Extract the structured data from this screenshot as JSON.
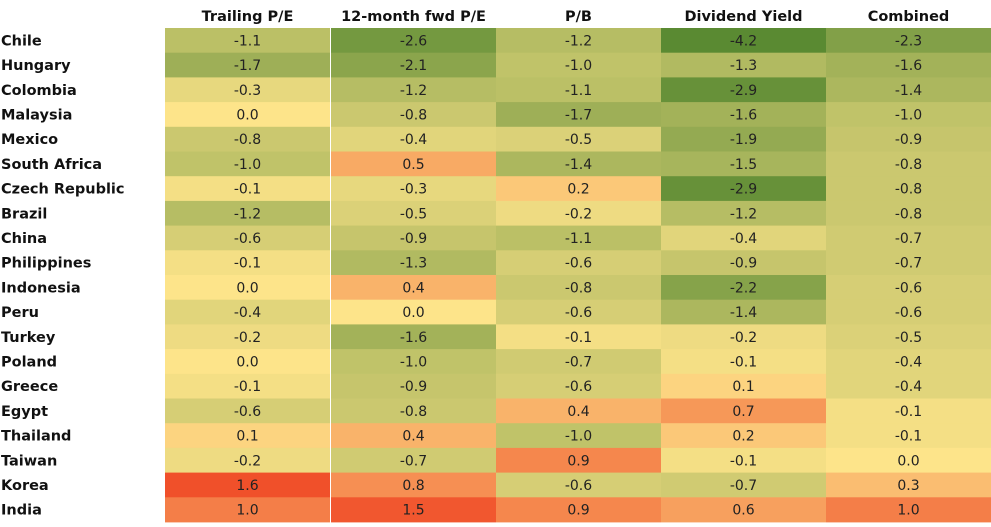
{
  "chart_data": {
    "type": "heatmap",
    "columns": [
      "Trailing P/E",
      "12-month fwd P/E",
      "P/B",
      "Dividend Yield",
      "Combined"
    ],
    "rows": [
      "Chile",
      "Hungary",
      "Colombia",
      "Malaysia",
      "Mexico",
      "South Africa",
      "Czech Republic",
      "Brazil",
      "China",
      "Philippines",
      "Indonesia",
      "Peru",
      "Turkey",
      "Poland",
      "Greece",
      "Egypt",
      "Thailand",
      "Taiwan",
      "Korea",
      "India"
    ],
    "values": [
      [
        -1.1,
        -2.6,
        -1.2,
        -4.2,
        -2.3
      ],
      [
        -1.7,
        -2.1,
        -1.0,
        -1.3,
        -1.6
      ],
      [
        -0.3,
        -1.2,
        -1.1,
        -2.9,
        -1.4
      ],
      [
        0.0,
        -0.8,
        -1.7,
        -1.6,
        -1.0
      ],
      [
        -0.8,
        -0.4,
        -0.5,
        -1.9,
        -0.9
      ],
      [
        -1.0,
        0.5,
        -1.4,
        -1.5,
        -0.8
      ],
      [
        -0.1,
        -0.3,
        0.2,
        -2.9,
        -0.8
      ],
      [
        -1.2,
        -0.5,
        -0.2,
        -1.2,
        -0.8
      ],
      [
        -0.6,
        -0.9,
        -1.1,
        -0.4,
        -0.7
      ],
      [
        -0.1,
        -1.3,
        -0.6,
        -0.9,
        -0.7
      ],
      [
        0.0,
        0.4,
        -0.8,
        -2.2,
        -0.6
      ],
      [
        -0.4,
        0.0,
        -0.6,
        -1.4,
        -0.6
      ],
      [
        -0.2,
        -1.6,
        -0.1,
        -0.2,
        -0.5
      ],
      [
        0.0,
        -1.0,
        -0.7,
        -0.1,
        -0.4
      ],
      [
        -0.1,
        -0.9,
        -0.6,
        0.1,
        -0.4
      ],
      [
        -0.6,
        -0.8,
        0.4,
        0.7,
        -0.1
      ],
      [
        0.1,
        0.4,
        -1.0,
        0.2,
        -0.1
      ],
      [
        -0.2,
        -0.7,
        0.9,
        -0.1,
        0.0
      ],
      [
        1.6,
        0.8,
        -0.6,
        -0.7,
        0.3
      ],
      [
        1.0,
        1.5,
        0.9,
        0.6,
        1.0
      ]
    ],
    "color_scale": {
      "low": "#5a8a32",
      "mid": "#fde48a",
      "high": "#f0502a"
    },
    "title": "",
    "xlabel": "",
    "ylabel": "",
    "legend": "none",
    "grid": false
  }
}
